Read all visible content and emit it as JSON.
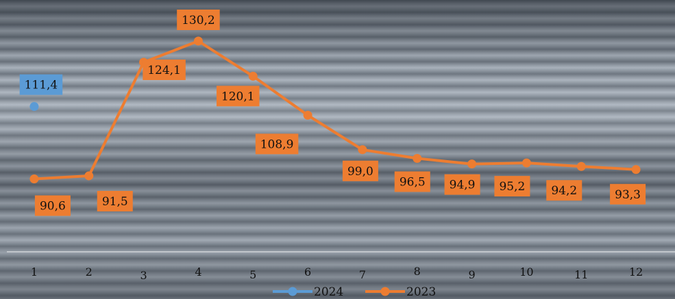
{
  "chart_data": {
    "type": "line",
    "categories": [
      "1",
      "2",
      "3",
      "4",
      "5",
      "6",
      "7",
      "8",
      "9",
      "10",
      "11",
      "12"
    ],
    "series": [
      {
        "name": "2024",
        "color": "#5b9bd5",
        "values": [
          111.4,
          null,
          null,
          null,
          null,
          null,
          null,
          null,
          null,
          null,
          null,
          null
        ],
        "labels": [
          "111,4"
        ]
      },
      {
        "name": "2023",
        "color": "#ed7d31",
        "values": [
          90.6,
          91.5,
          124.1,
          130.2,
          120.1,
          108.9,
          99.0,
          96.5,
          94.9,
          95.2,
          94.2,
          93.3
        ],
        "labels": [
          "90,6",
          "91,5",
          "124,1",
          "130,2",
          "120,1",
          "108,9",
          "99,0",
          "96,5",
          "94,9",
          "95,2",
          "94,2",
          "93,3"
        ]
      }
    ],
    "legend_position": "bottom",
    "grid": false
  }
}
